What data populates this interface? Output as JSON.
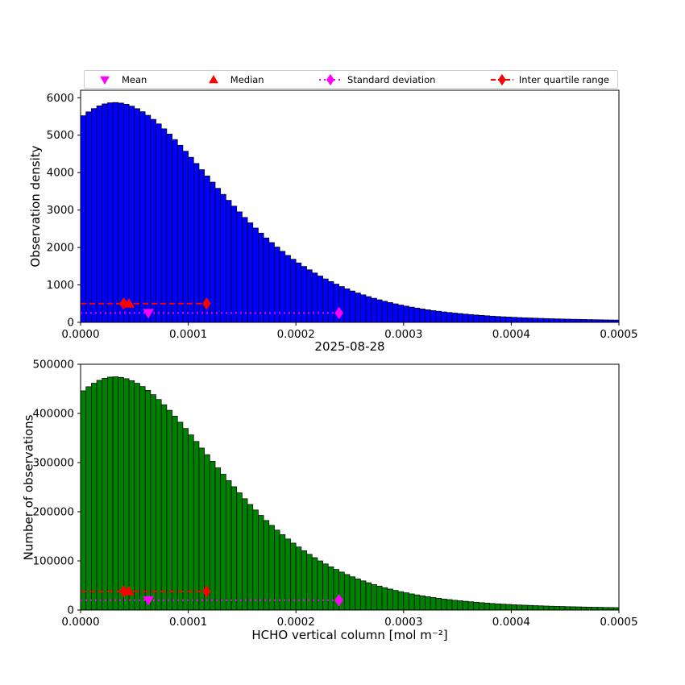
{
  "title": "2025-08-28",
  "xlabel": "HCHO vertical column [mol m⁻²]",
  "legend": {
    "items": [
      {
        "label": "Mean",
        "marker": "triangle-down",
        "color": "#ff00ff",
        "line": "none"
      },
      {
        "label": "Median",
        "marker": "triangle-up",
        "color": "#ff0000",
        "line": "none"
      },
      {
        "label": "Standard deviation",
        "marker": "diamond",
        "color": "#ff00ff",
        "line": "dotted"
      },
      {
        "label": "Inter quartile range",
        "marker": "diamond",
        "color": "#ff0000",
        "line": "dashed"
      }
    ]
  },
  "colors": {
    "mean": "#ff00ff",
    "median": "#ff0000",
    "std": "#ff00ff",
    "iqr": "#ff0000"
  },
  "x": {
    "min": 0,
    "max": 0.0005,
    "ticks": [
      0,
      0.0001,
      0.0002,
      0.0003,
      0.0004,
      0.0005
    ],
    "tick_labels": [
      "0.0000",
      "0.0001",
      "0.0002",
      "0.0003",
      "0.0004",
      "0.0005"
    ]
  },
  "stats": {
    "mean": 6.3e-05,
    "median": 4.5e-05,
    "q1": 4e-05,
    "q3": 0.000117,
    "std_marker": 0.00024
  },
  "chart_data": [
    {
      "type": "bar",
      "title": "2025-08-28",
      "ylabel": "Observation density",
      "bar_color": "#0000ff",
      "bin_start": 0,
      "bin_width": 5e-06,
      "ylim": [
        0,
        6200
      ],
      "yticks": [
        0,
        1000,
        2000,
        3000,
        4000,
        5000,
        6000
      ],
      "ytick_labels": [
        "0",
        "1000",
        "2000",
        "3000",
        "4000",
        "5000",
        "6000"
      ],
      "marker_y": {
        "std": 250,
        "iqr": 500
      },
      "values": [
        5520,
        5623,
        5711,
        5784,
        5836,
        5865,
        5873,
        5858,
        5826,
        5776,
        5709,
        5627,
        5532,
        5423,
        5302,
        5170,
        5030,
        4883,
        4730,
        4572,
        4410,
        4245,
        4079,
        3912,
        3746,
        3581,
        3419,
        3260,
        3105,
        2952,
        2803,
        2659,
        2520,
        2384,
        2255,
        2132,
        2012,
        1898,
        1789,
        1686,
        1588,
        1494,
        1404,
        1319,
        1238,
        1161,
        1089,
        1022,
        957,
        895,
        838,
        785,
        735,
        688,
        644,
        603,
        564,
        529,
        495,
        463,
        434,
        407,
        382,
        359,
        337,
        316,
        297,
        279,
        263,
        248,
        235,
        221,
        209,
        197,
        186,
        176,
        166,
        157,
        149,
        142,
        135,
        128,
        122,
        117,
        112,
        107,
        102,
        97,
        93,
        90,
        86,
        83,
        80,
        77,
        74,
        71,
        69,
        66,
        64,
        62
      ]
    },
    {
      "type": "bar",
      "title": "",
      "ylabel": "Number of observations",
      "bar_color": "#008000",
      "bin_start": 0,
      "bin_width": 5e-06,
      "ylim": [
        0,
        500000
      ],
      "yticks": [
        0,
        100000,
        200000,
        300000,
        400000,
        500000
      ],
      "ytick_labels": [
        "0",
        "100000",
        "200000",
        "300000",
        "400000",
        "500000"
      ],
      "marker_y": {
        "std": 20000,
        "iqr": 38000
      },
      "values": [
        446000,
        454300,
        461400,
        467300,
        471500,
        473900,
        474500,
        473300,
        470700,
        466700,
        461300,
        454700,
        447000,
        438200,
        428400,
        417700,
        406400,
        394500,
        382200,
        369400,
        356300,
        343000,
        329600,
        316100,
        302700,
        289300,
        276300,
        263400,
        250900,
        238500,
        226500,
        214800,
        203600,
        192600,
        182200,
        172300,
        162600,
        153400,
        144600,
        136200,
        128300,
        120700,
        113400,
        106600,
        100000,
        93800,
        88000,
        82600,
        77300,
        72300,
        67700,
        63400,
        59400,
        55600,
        52000,
        48700,
        45600,
        42700,
        40000,
        37400,
        35100,
        32900,
        30900,
        29000,
        27200,
        25500,
        24000,
        22500,
        21300,
        20000,
        19000,
        17900,
        16900,
        15900,
        15000,
        14200,
        13400,
        12700,
        12000,
        11500,
        10900,
        10300,
        9900,
        9500,
        9000,
        8600,
        8200,
        7800,
        7500,
        7300,
        6900,
        6700,
        6500,
        6200,
        6000,
        5700,
        5600,
        5300,
        5200,
        5000
      ]
    }
  ]
}
